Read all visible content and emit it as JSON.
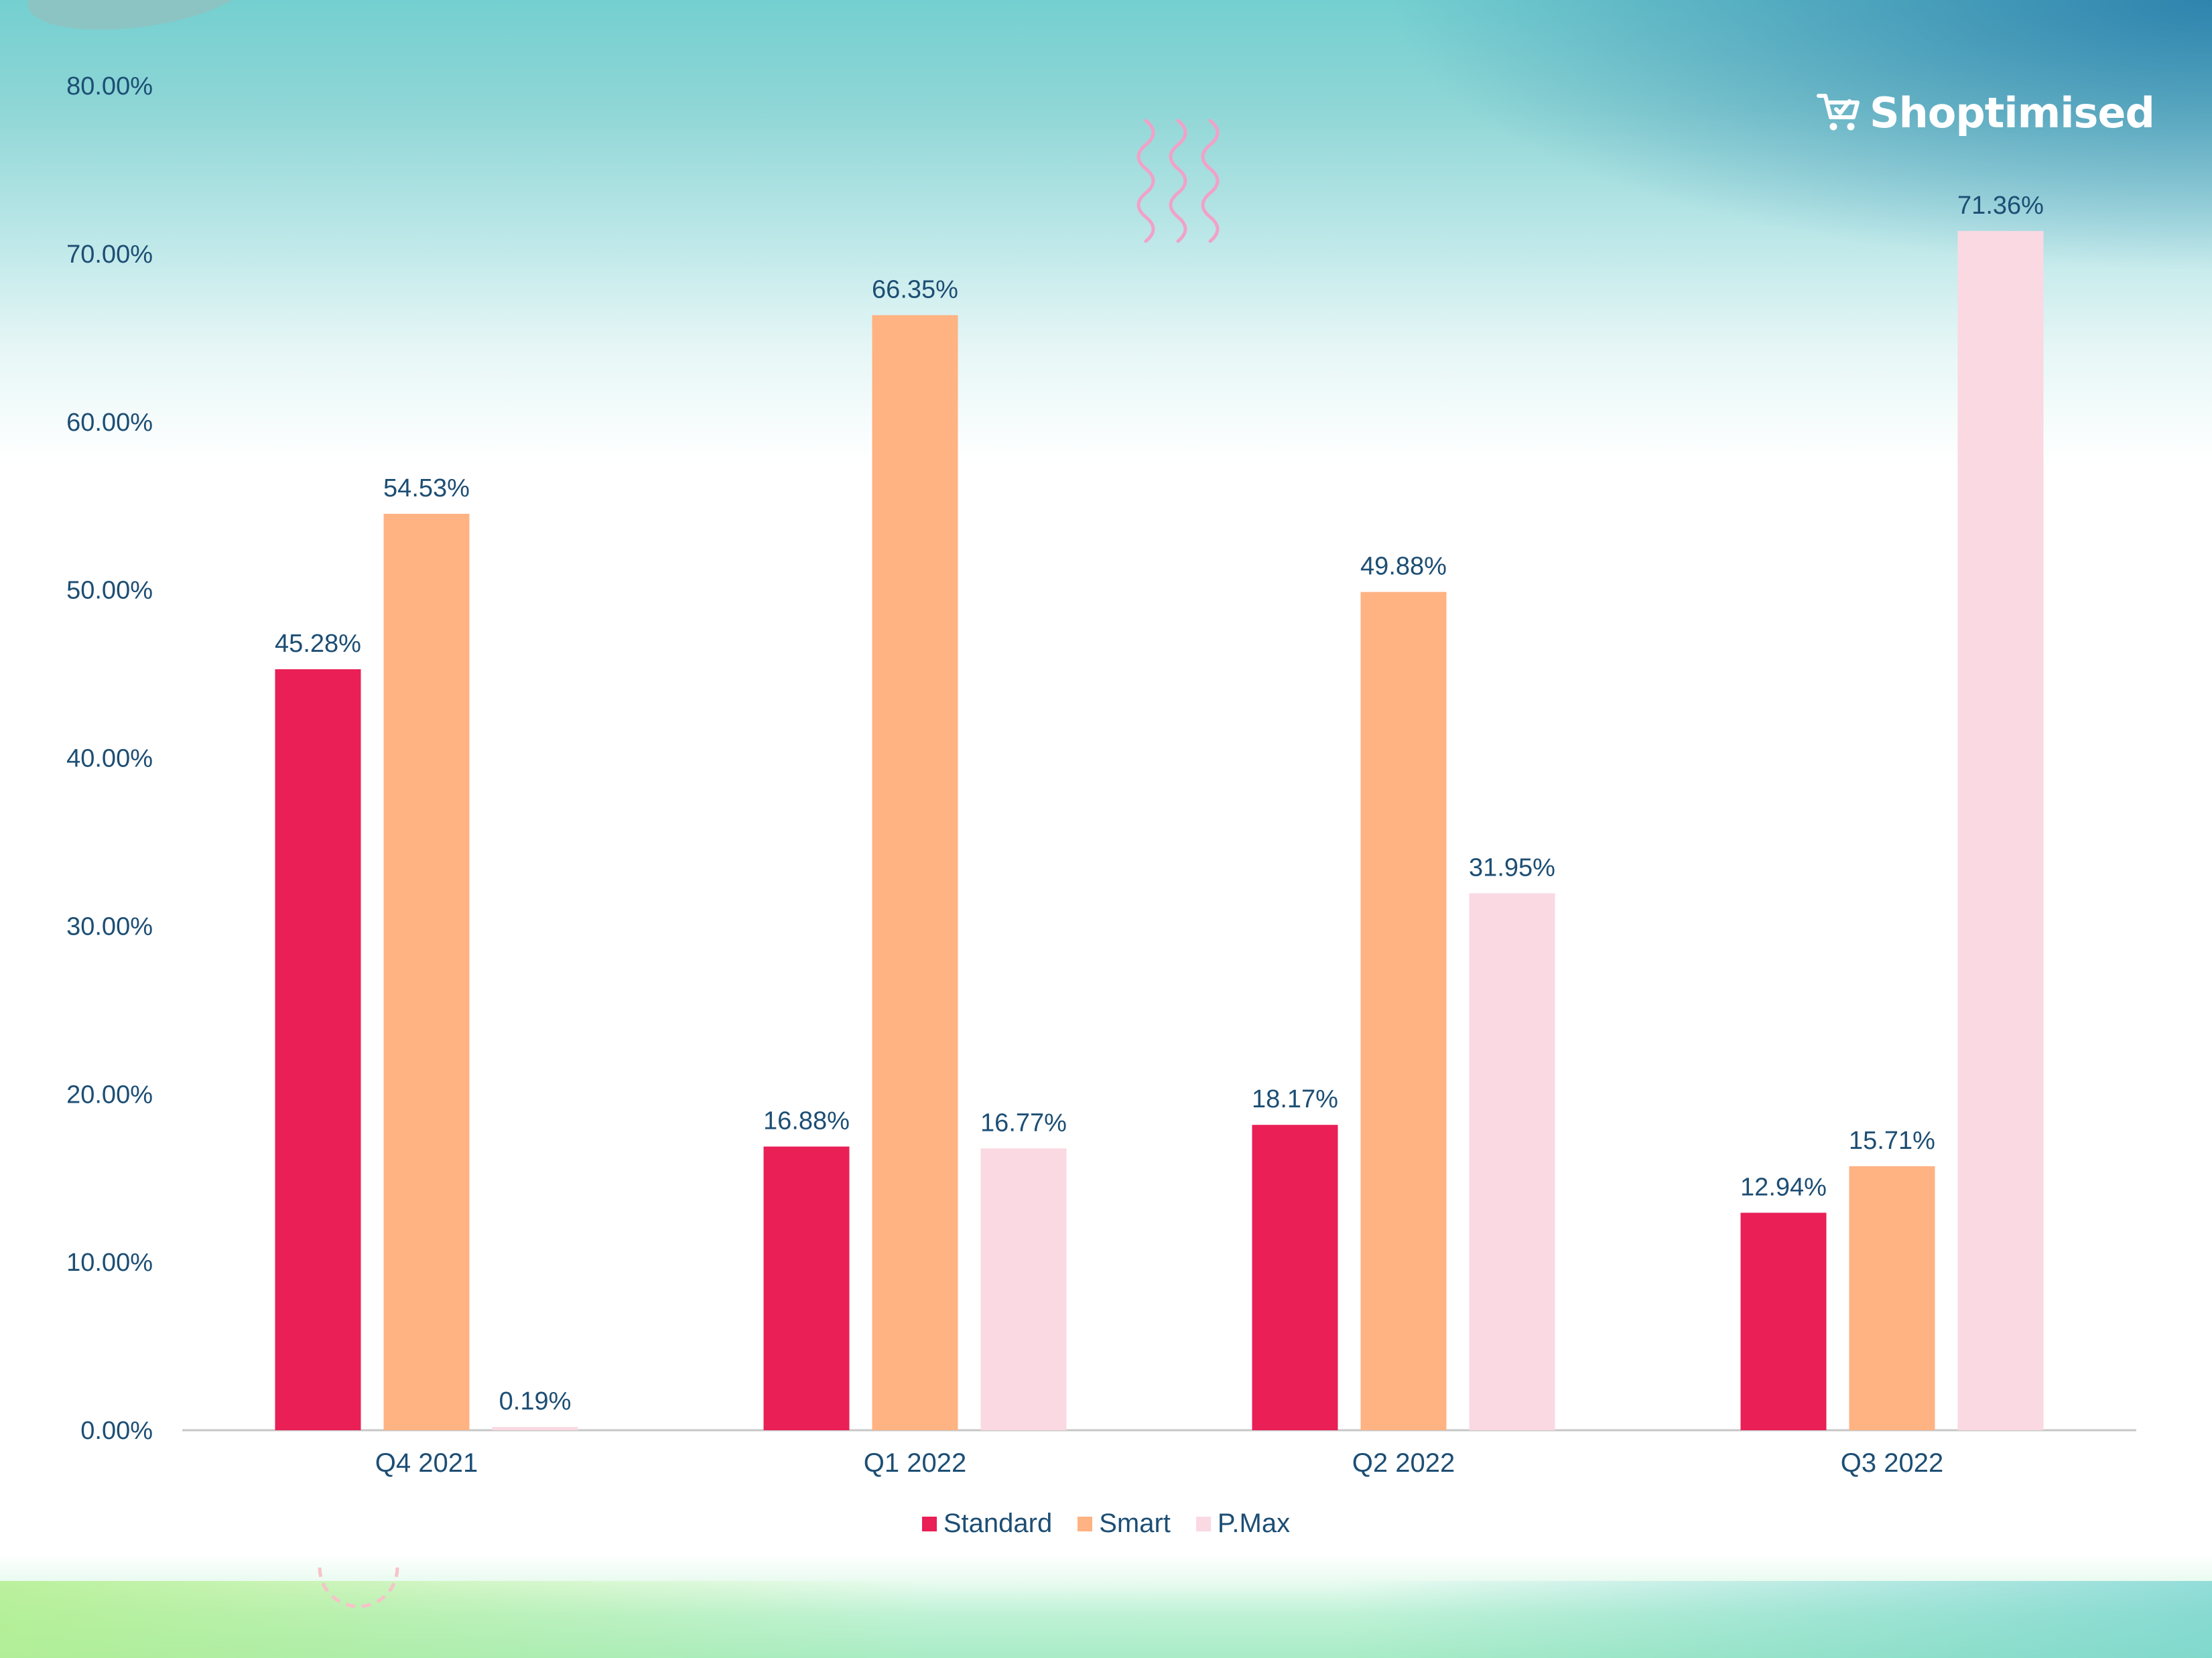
{
  "brand": {
    "name": "Shoptimised"
  },
  "colors": {
    "Standard": "#e91f56",
    "Smart": "#ffb282",
    "P.Max": "#fad9e2",
    "text": "#1d4e74",
    "axis": "#c7c7c7"
  },
  "chart_data": {
    "type": "bar",
    "title": "",
    "xlabel": "",
    "ylabel": "",
    "categories": [
      "Q4 2021",
      "Q1 2022",
      "Q2 2022",
      "Q3 2022"
    ],
    "series": [
      {
        "name": "Standard",
        "values": [
          45.28,
          16.88,
          18.17,
          12.94
        ],
        "labels": [
          "45.28%",
          "16.88%",
          "18.17%",
          "12.94%"
        ]
      },
      {
        "name": "Smart",
        "values": [
          54.53,
          66.35,
          49.88,
          15.71
        ],
        "labels": [
          "54.53%",
          "66.35%",
          "49.88%",
          "15.71%"
        ]
      },
      {
        "name": "P.Max",
        "values": [
          0.19,
          16.77,
          31.95,
          71.36
        ],
        "labels": [
          "0.19%",
          "16.77%",
          "31.95%",
          "71.36%"
        ]
      }
    ],
    "ylim": [
      0,
      80
    ],
    "yticks": [
      "0.00%",
      "10.00%",
      "20.00%",
      "30.00%",
      "40.00%",
      "50.00%",
      "60.00%",
      "70.00%",
      "80.00%"
    ],
    "grid": false,
    "legend": "bottom-center"
  }
}
